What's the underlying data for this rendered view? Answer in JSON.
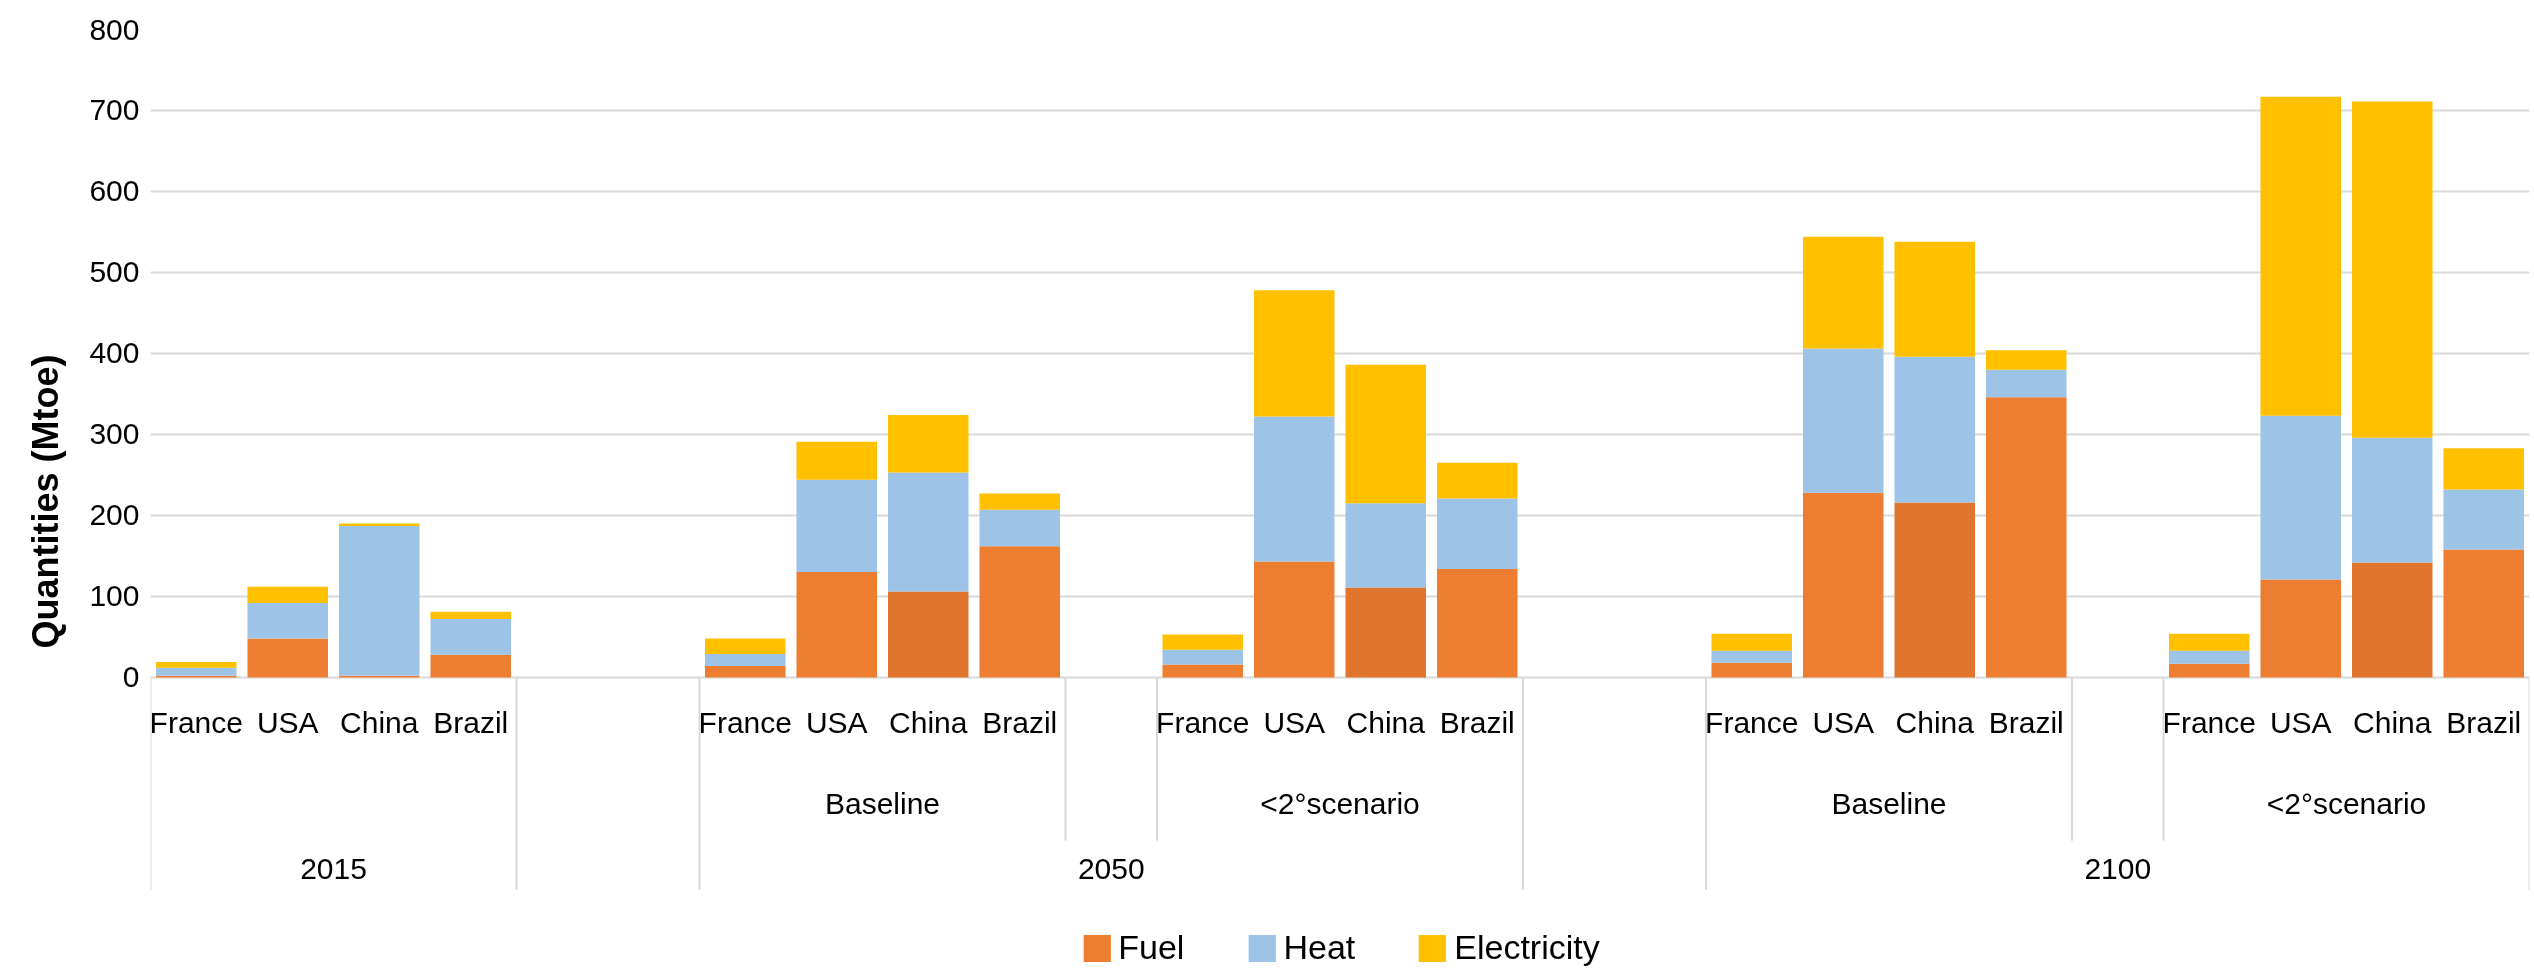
{
  "chart_data": {
    "type": "bar",
    "stacked": true,
    "ylabel": "Quantities (Mtoe)",
    "categories": [
      "France",
      "USA",
      "China",
      "Brazil",
      null,
      null,
      "France",
      "USA",
      "China",
      "Brazil",
      null,
      "France",
      "USA",
      "China",
      "Brazil",
      null,
      null,
      "France",
      "USA",
      "China",
      "Brazil",
      null,
      "France",
      "USA",
      "China",
      "Brazil"
    ],
    "series": [
      {
        "name": "Fuel",
        "color": "#ed7d31",
        "colors": [
          null,
          null,
          null,
          null,
          null,
          null,
          null,
          null,
          "#e0752d",
          null,
          null,
          null,
          null,
          "#e0752d",
          null,
          null,
          null,
          null,
          null,
          "#e0752d",
          null,
          null,
          null,
          null,
          "#e0752d",
          null
        ],
        "values": [
          2,
          48,
          2,
          28,
          null,
          null,
          14,
          130,
          106,
          162,
          null,
          16,
          143,
          111,
          134,
          null,
          null,
          18,
          228,
          216,
          346,
          null,
          17,
          121,
          142,
          158
        ]
      },
      {
        "name": "Heat",
        "color": "#9dc3e6",
        "values": [
          10,
          44,
          185,
          44,
          null,
          null,
          15,
          114,
          147,
          45,
          null,
          18,
          179,
          104,
          87,
          null,
          null,
          15,
          178,
          180,
          34,
          null,
          16,
          202,
          154,
          74
        ]
      },
      {
        "name": "Electricity",
        "color": "#ffc000",
        "values": [
          7,
          20,
          3,
          9,
          null,
          null,
          19,
          47,
          71,
          20,
          null,
          19,
          156,
          171,
          44,
          null,
          null,
          21,
          138,
          142,
          24,
          null,
          21,
          394,
          415,
          51
        ]
      }
    ],
    "ylim": [
      0,
      800
    ],
    "yticks": [
      0,
      100,
      200,
      300,
      400,
      500,
      600,
      700,
      800
    ],
    "grid": "y",
    "legend": "bottom",
    "annotations": [
      "Baseline",
      "<2°scenario",
      "Baseline",
      "<2°scenario",
      "2015",
      "2050",
      "2100"
    ]
  }
}
